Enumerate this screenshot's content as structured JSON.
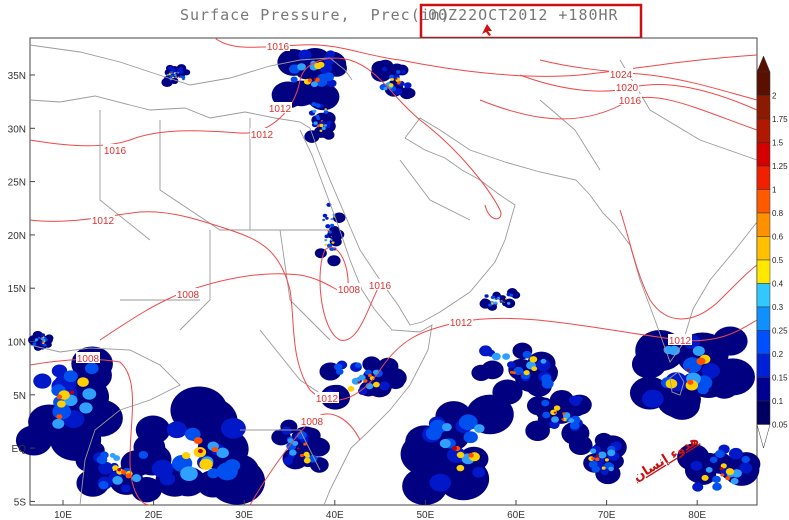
{
  "header": {
    "title": "Surface Pressure,  Prec(in)",
    "run": "00Z22OCT2012 +180HR"
  },
  "map": {
    "lat_labels": [
      "35N",
      "30N",
      "25N",
      "20N",
      "15N",
      "10N",
      "5N",
      "EQ",
      "5S"
    ],
    "lon_labels": [
      "10E",
      "20E",
      "30E",
      "40E",
      "50E",
      "60E",
      "70E",
      "80E"
    ],
    "isobar_labels": [
      "1016",
      "1012",
      "1012",
      "1016",
      "1012",
      "1008",
      "1008",
      "1008",
      "1016",
      "1012",
      "1012",
      "1008",
      "1024",
      "1020",
      "1016",
      "1012"
    ],
    "watermark": "هدوء إنسان"
  },
  "colorbar": {
    "labels": [
      "2",
      "1.75",
      "1.5",
      "1.25",
      "1",
      "0.8",
      "0.6",
      "0.5",
      "0.4",
      "0.3",
      "0.25",
      "0.2",
      "0.15",
      "0.1",
      "0.05"
    ]
  }
}
